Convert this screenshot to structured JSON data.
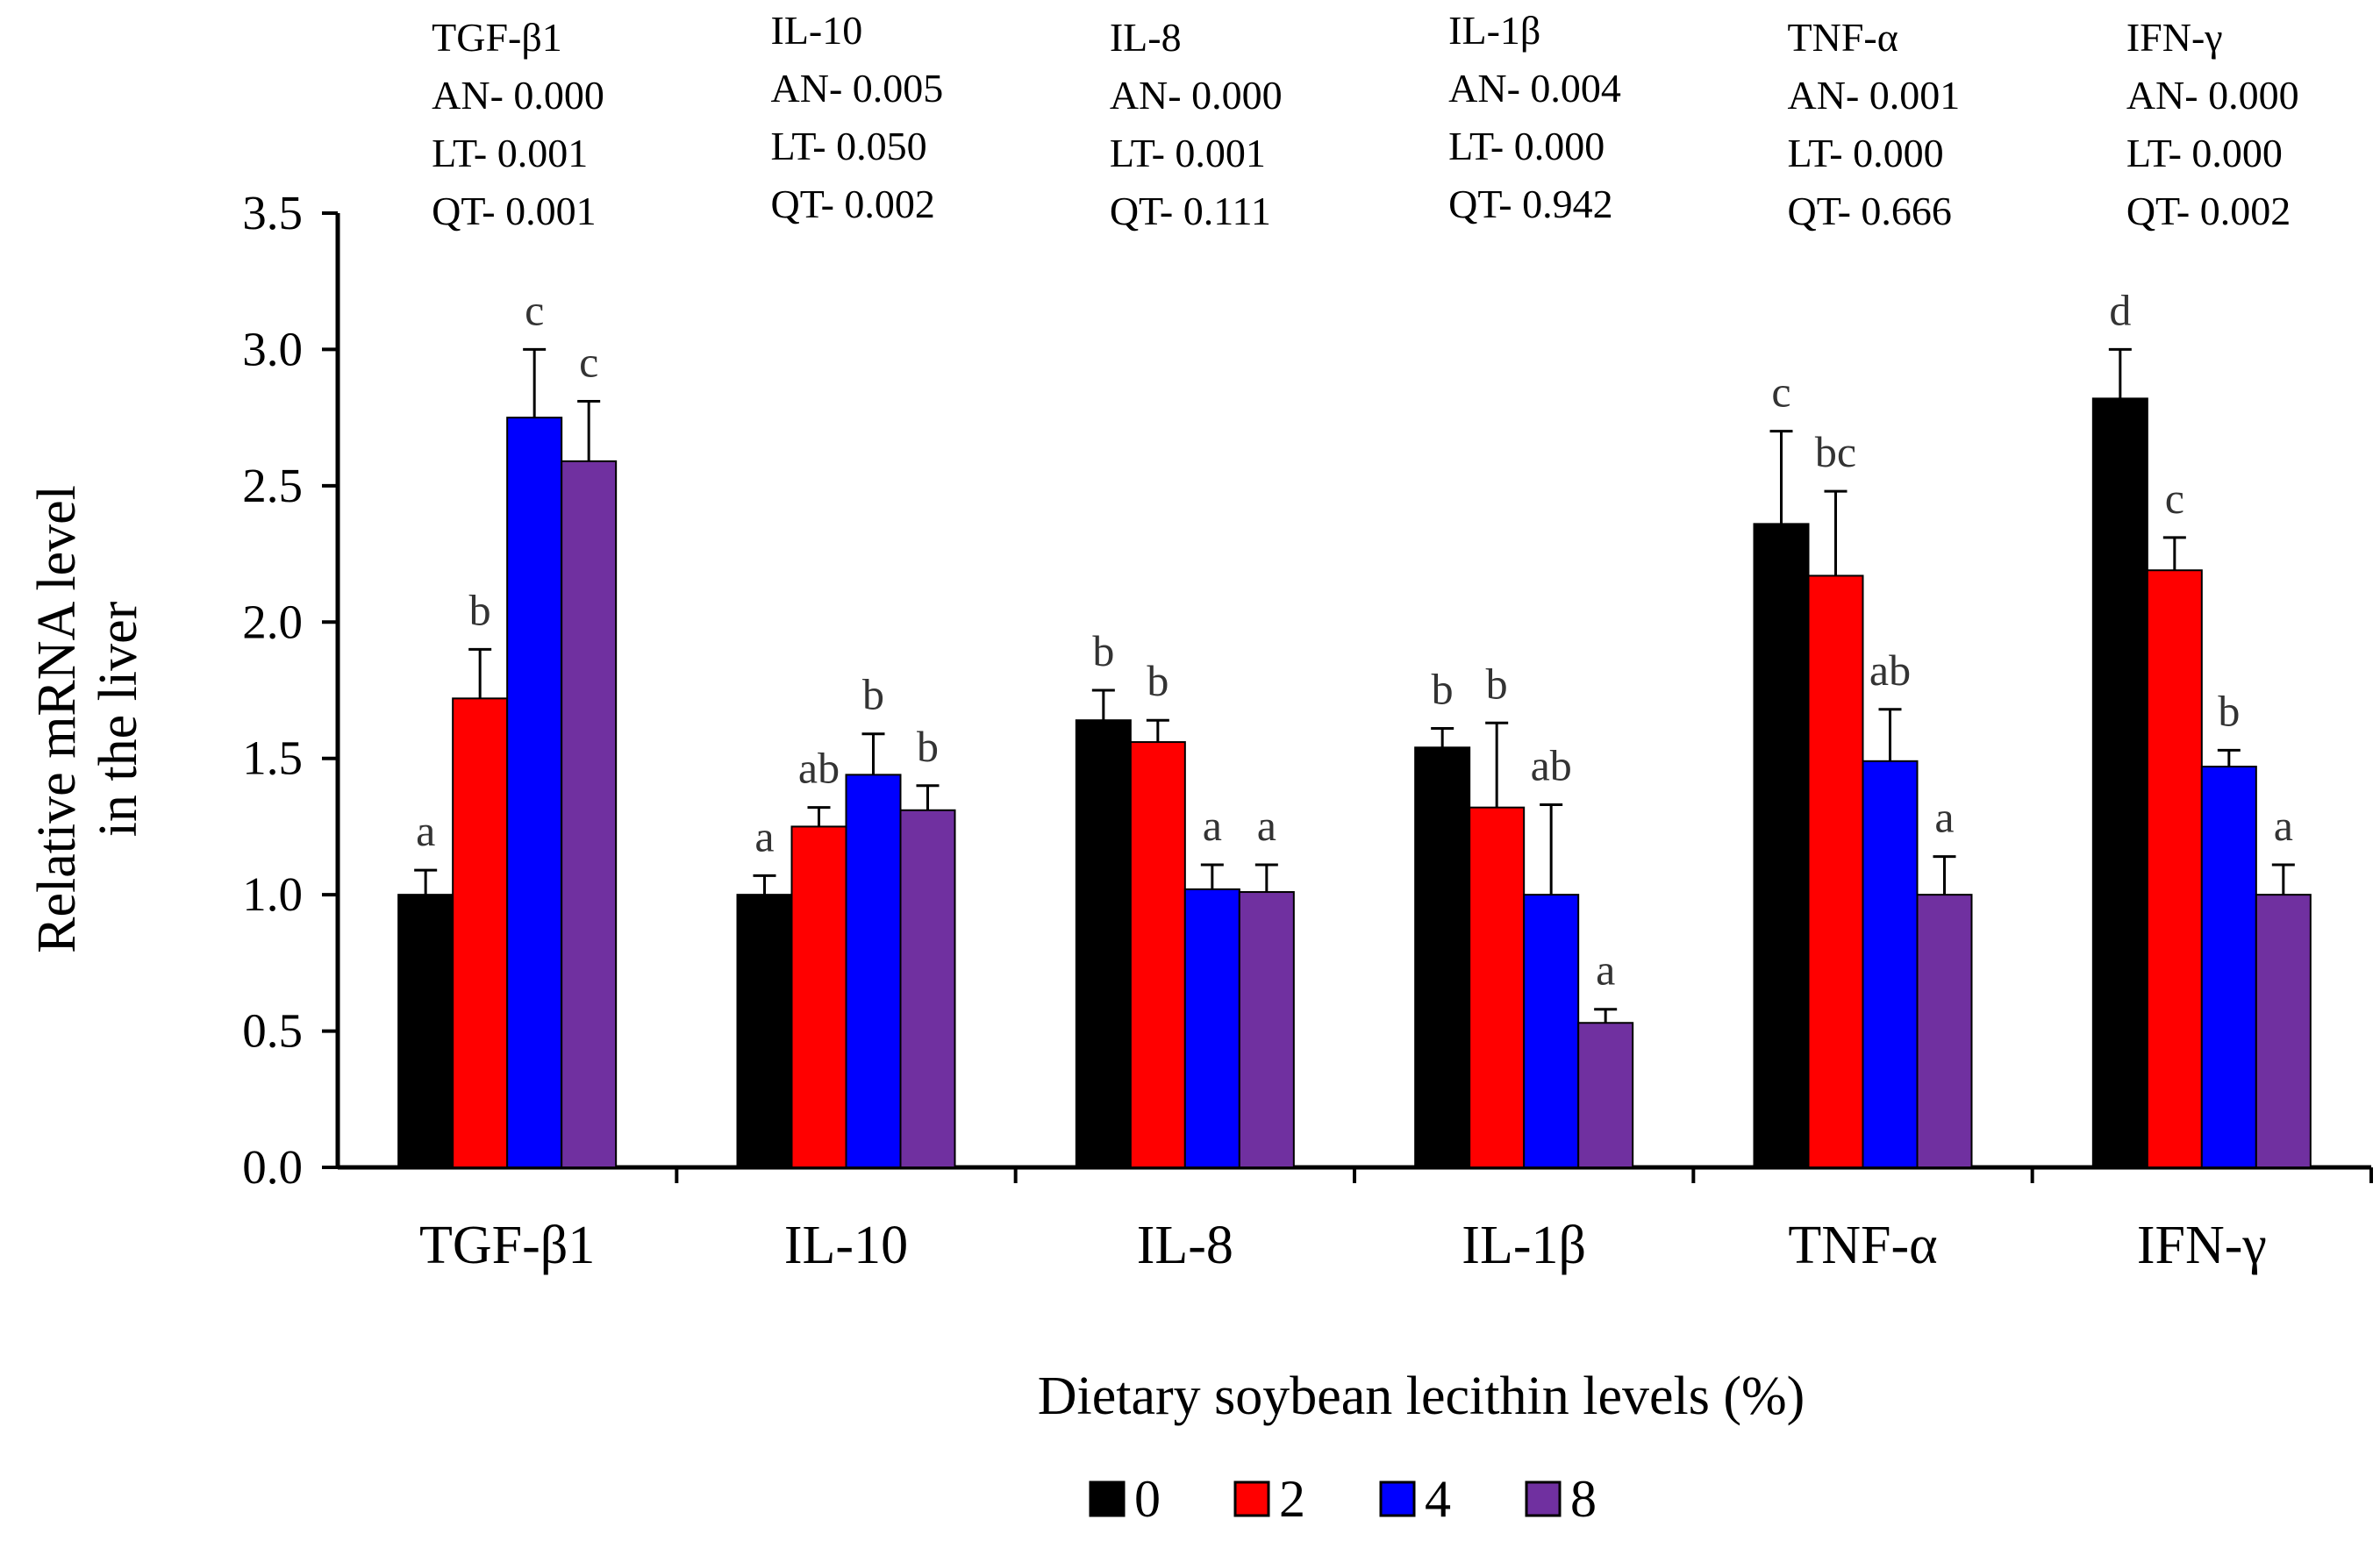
{
  "chart_data": {
    "type": "bar",
    "title": "",
    "xlabel": "Dietary soybean lecithin levels (%)",
    "ylabel_lines": [
      "Relative mRNA level",
      "in the liver"
    ],
    "ylim": [
      0,
      3.5
    ],
    "yticks": [
      "0.0",
      "0.5",
      "1.0",
      "1.5",
      "2.0",
      "2.5",
      "3.0",
      "3.5"
    ],
    "categories": [
      "TGF-β1",
      "IL-10",
      "IL-8",
      "IL-1β",
      "TNF-α",
      "IFN-γ"
    ],
    "series": [
      {
        "name": "0",
        "color": "#000000",
        "values": [
          1.0,
          1.0,
          1.64,
          1.54,
          2.36,
          2.82
        ],
        "errors": [
          0.09,
          0.07,
          0.11,
          0.07,
          0.34,
          0.18
        ],
        "letters": [
          "a",
          "a",
          "b",
          "b",
          "c",
          "d"
        ]
      },
      {
        "name": "2",
        "color": "#ff0000",
        "values": [
          1.72,
          1.25,
          1.56,
          1.32,
          2.17,
          2.19
        ],
        "errors": [
          0.18,
          0.07,
          0.08,
          0.31,
          0.31,
          0.12
        ],
        "letters": [
          "b",
          "ab",
          "b",
          "b",
          "bc",
          "c"
        ]
      },
      {
        "name": "4",
        "color": "#0000ff",
        "values": [
          2.75,
          1.44,
          1.02,
          1.0,
          1.49,
          1.47
        ],
        "errors": [
          0.25,
          0.15,
          0.09,
          0.33,
          0.19,
          0.06
        ],
        "letters": [
          "c",
          "b",
          "a",
          "ab",
          "ab",
          "b"
        ]
      },
      {
        "name": "8",
        "color": "#7030a0",
        "values": [
          2.59,
          1.31,
          1.01,
          0.53,
          1.0,
          1.0
        ],
        "errors": [
          0.22,
          0.09,
          0.1,
          0.05,
          0.14,
          0.11
        ],
        "letters": [
          "c",
          "b",
          "a",
          "a",
          "a",
          "a"
        ]
      }
    ],
    "stats": [
      {
        "gene": "TGF-β1",
        "AN": "AN- 0.000",
        "LT": "LT- 0.001",
        "QT": "QT- 0.001"
      },
      {
        "gene": "IL-10",
        "AN": "AN- 0.005",
        "LT": "LT- 0.050",
        "QT": "QT- 0.002"
      },
      {
        "gene": "IL-8",
        "AN": "AN- 0.000",
        "LT": "LT- 0.001",
        "QT": "QT- 0.111"
      },
      {
        "gene": "IL-1β",
        "AN": "AN- 0.004",
        "LT": "LT- 0.000",
        "QT": "QT- 0.942"
      },
      {
        "gene": "TNF-α",
        "AN": "AN- 0.001",
        "LT": "LT- 0.000",
        "QT": "QT- 0.666"
      },
      {
        "gene": "IFN-γ",
        "AN": "AN- 0.000",
        "LT": "LT- 0.000",
        "QT": "QT- 0.002"
      }
    ],
    "legend": {
      "placement": "bottom-center",
      "labels": [
        "0",
        "2",
        "4",
        "8"
      ]
    }
  }
}
